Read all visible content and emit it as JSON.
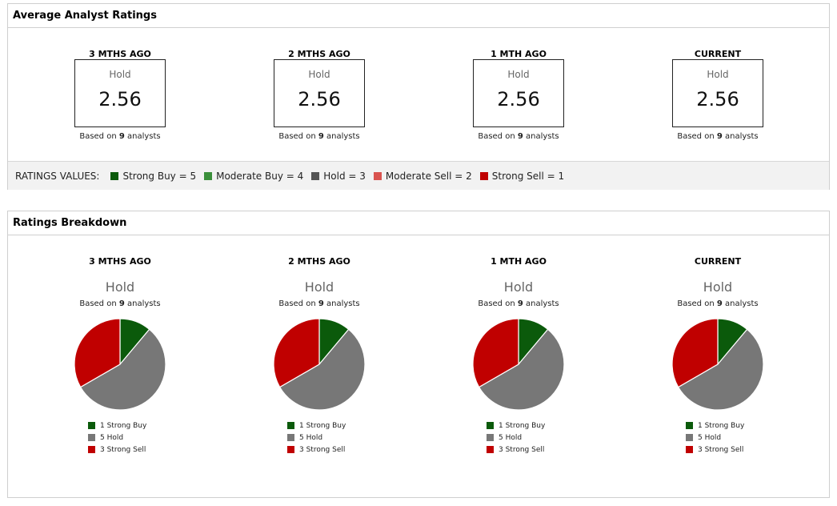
{
  "average_panel": {
    "title": "Average Analyst Ratings",
    "periods": [
      {
        "label": "3 MTHS AGO",
        "rating": "Hold",
        "score": "2.56",
        "based_prefix": "Based on",
        "analysts": "9",
        "based_suffix": "analysts"
      },
      {
        "label": "2 MTHS AGO",
        "rating": "Hold",
        "score": "2.56",
        "based_prefix": "Based on",
        "analysts": "9",
        "based_suffix": "analysts"
      },
      {
        "label": "1 MTH AGO",
        "rating": "Hold",
        "score": "2.56",
        "based_prefix": "Based on",
        "analysts": "9",
        "based_suffix": "analysts"
      },
      {
        "label": "CURRENT",
        "rating": "Hold",
        "score": "2.56",
        "based_prefix": "Based on",
        "analysts": "9",
        "based_suffix": "analysts"
      }
    ],
    "ratings_values_title": "RATINGS VALUES:",
    "ratings_values": [
      {
        "label": "Strong Buy = 5",
        "color": "#0b5a0b"
      },
      {
        "label": "Moderate Buy = 4",
        "color": "#3a8f3a"
      },
      {
        "label": "Hold = 3",
        "color": "#555555"
      },
      {
        "label": "Moderate Sell = 2",
        "color": "#d9534f"
      },
      {
        "label": "Strong Sell = 1",
        "color": "#c00000"
      }
    ]
  },
  "breakdown_panel": {
    "title": "Ratings Breakdown",
    "periods": [
      {
        "label": "3 MTHS AGO",
        "rating": "Hold",
        "based_prefix": "Based on",
        "analysts": "9",
        "based_suffix": "analysts",
        "legend": [
          {
            "text": "1 Strong Buy",
            "color": "#0b5a0b"
          },
          {
            "text": "5 Hold",
            "color": "#777777"
          },
          {
            "text": "3 Strong Sell",
            "color": "#c00000"
          }
        ]
      },
      {
        "label": "2 MTHS AGO",
        "rating": "Hold",
        "based_prefix": "Based on",
        "analysts": "9",
        "based_suffix": "analysts",
        "legend": [
          {
            "text": "1 Strong Buy",
            "color": "#0b5a0b"
          },
          {
            "text": "5 Hold",
            "color": "#777777"
          },
          {
            "text": "3 Strong Sell",
            "color": "#c00000"
          }
        ]
      },
      {
        "label": "1 MTH AGO",
        "rating": "Hold",
        "based_prefix": "Based on",
        "analysts": "9",
        "based_suffix": "analysts",
        "legend": [
          {
            "text": "1 Strong Buy",
            "color": "#0b5a0b"
          },
          {
            "text": "5 Hold",
            "color": "#777777"
          },
          {
            "text": "3 Strong Sell",
            "color": "#c00000"
          }
        ]
      },
      {
        "label": "CURRENT",
        "rating": "Hold",
        "based_prefix": "Based on",
        "analysts": "9",
        "based_suffix": "analysts",
        "legend": [
          {
            "text": "1 Strong Buy",
            "color": "#0b5a0b"
          },
          {
            "text": "5 Hold",
            "color": "#777777"
          },
          {
            "text": "3 Strong Sell",
            "color": "#c00000"
          }
        ]
      }
    ]
  },
  "chart_data": [
    {
      "type": "pie",
      "categories": [
        "Strong Buy",
        "Hold",
        "Strong Sell"
      ],
      "values": [
        1,
        5,
        3
      ],
      "colors": [
        "#0b5a0b",
        "#777777",
        "#c00000"
      ]
    },
    {
      "type": "pie",
      "categories": [
        "Strong Buy",
        "Hold",
        "Strong Sell"
      ],
      "values": [
        1,
        5,
        3
      ],
      "colors": [
        "#0b5a0b",
        "#777777",
        "#c00000"
      ]
    },
    {
      "type": "pie",
      "categories": [
        "Strong Buy",
        "Hold",
        "Strong Sell"
      ],
      "values": [
        1,
        5,
        3
      ],
      "colors": [
        "#0b5a0b",
        "#777777",
        "#c00000"
      ]
    },
    {
      "type": "pie",
      "categories": [
        "Strong Buy",
        "Hold",
        "Strong Sell"
      ],
      "values": [
        1,
        5,
        3
      ],
      "colors": [
        "#0b5a0b",
        "#777777",
        "#c00000"
      ]
    }
  ]
}
